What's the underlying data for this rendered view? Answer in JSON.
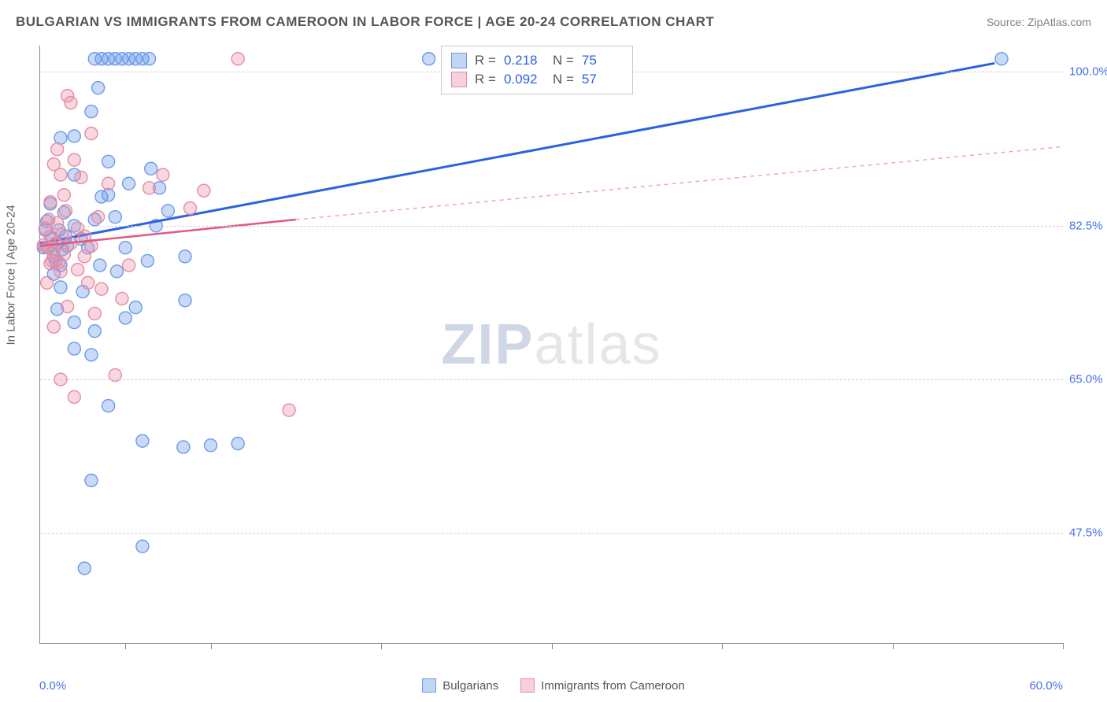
{
  "title": "BULGARIAN VS IMMIGRANTS FROM CAMEROON IN LABOR FORCE | AGE 20-24 CORRELATION CHART",
  "source_label": "Source: ZipAtlas.com",
  "ylabel": "In Labor Force | Age 20-24",
  "watermark": {
    "part1": "ZIP",
    "part2": "atlas"
  },
  "chart": {
    "type": "scatter",
    "background_color": "#ffffff",
    "grid_color": "#d0d0d0",
    "axis_color": "#888888",
    "tick_label_color": "#4472e8",
    "xlim": [
      0,
      60
    ],
    "ylim": [
      35,
      103
    ],
    "x_tick_positions": [
      5,
      10,
      20,
      30,
      40,
      50,
      60
    ],
    "y_ticks": [
      47.5,
      65.0,
      82.5,
      100.0
    ],
    "y_tick_labels": [
      "47.5%",
      "65.0%",
      "82.5%",
      "100.0%"
    ],
    "x_min_label": "0.0%",
    "x_max_label": "60.0%",
    "marker_radius": 8,
    "marker_stroke_width": 1.4,
    "series": [
      {
        "name": "Bulgarians",
        "color_fill": "rgba(100,150,235,0.35)",
        "color_stroke": "#6a9be8",
        "swatch_fill": "#c3d5f5",
        "swatch_border": "#6a9be8",
        "R": "0.218",
        "N": "75",
        "regression": {
          "x1": 0,
          "y1": 80.5,
          "x2": 56,
          "y2": 101,
          "stroke": "#2b62e0",
          "width": 3,
          "dash": ""
        },
        "regression_ext": null,
        "points": [
          [
            0.5,
            80
          ],
          [
            0.7,
            81
          ],
          [
            0.8,
            79
          ],
          [
            0.3,
            82
          ],
          [
            1.0,
            80.5
          ],
          [
            1.2,
            78
          ],
          [
            1.5,
            81.3
          ],
          [
            0.4,
            83
          ],
          [
            0.9,
            78.5
          ],
          [
            1.1,
            82
          ],
          [
            1.4,
            84
          ],
          [
            0.6,
            85
          ],
          [
            0.2,
            80
          ],
          [
            0.8,
            77
          ],
          [
            1.3,
            79.8
          ],
          [
            1.6,
            80.2
          ],
          [
            2.0,
            82.5
          ],
          [
            2.4,
            81
          ],
          [
            2.8,
            80
          ],
          [
            3.2,
            83.2
          ],
          [
            3.6,
            85.8
          ],
          [
            4.0,
            86
          ],
          [
            4.4,
            83.5
          ],
          [
            5.2,
            87.3
          ],
          [
            5.6,
            73.2
          ],
          [
            2.0,
            92.7
          ],
          [
            3.2,
            101.5
          ],
          [
            3.6,
            101.5
          ],
          [
            4.0,
            101.5
          ],
          [
            4.4,
            101.5
          ],
          [
            4.8,
            101.5
          ],
          [
            5.2,
            101.5
          ],
          [
            5.6,
            101.5
          ],
          [
            6.0,
            101.5
          ],
          [
            6.4,
            101.5
          ],
          [
            3.4,
            98.2
          ],
          [
            1.2,
            92.5
          ],
          [
            2.0,
            88.3
          ],
          [
            4.0,
            89.8
          ],
          [
            22.8,
            101.5
          ],
          [
            56.4,
            101.5
          ],
          [
            11.6,
            57.7
          ],
          [
            10.0,
            57.5
          ],
          [
            8.4,
            57.3
          ],
          [
            6.0,
            58.0
          ],
          [
            4.0,
            62.0
          ],
          [
            3.0,
            53.5
          ],
          [
            2.6,
            43.5
          ],
          [
            6.0,
            46.0
          ],
          [
            5.0,
            72.0
          ],
          [
            3.2,
            70.5
          ],
          [
            3.0,
            67.8
          ],
          [
            2.0,
            68.5
          ],
          [
            2.0,
            71.5
          ],
          [
            1.0,
            73.0
          ],
          [
            1.2,
            75.5
          ],
          [
            2.5,
            75.0
          ],
          [
            3.5,
            78.0
          ],
          [
            4.5,
            77.3
          ],
          [
            5.0,
            80.0
          ],
          [
            6.3,
            78.5
          ],
          [
            6.8,
            82.5
          ],
          [
            7.5,
            84.2
          ],
          [
            8.5,
            79.0
          ],
          [
            8.5,
            74.0
          ],
          [
            7.0,
            86.8
          ],
          [
            6.5,
            89.0
          ],
          [
            3.0,
            95.5
          ]
        ]
      },
      {
        "name": "Immigrants from Cameroon",
        "color_fill": "rgba(235,140,165,0.35)",
        "color_stroke": "#e88ba3",
        "swatch_fill": "#f6d0da",
        "swatch_border": "#e88ba3",
        "R": "0.092",
        "N": "57",
        "regression": {
          "x1": 0,
          "y1": 80.2,
          "x2": 15,
          "y2": 83.2,
          "stroke": "#e05a7e",
          "width": 2.5,
          "dash": ""
        },
        "regression_ext": {
          "x1": 15,
          "y1": 83.2,
          "x2": 60,
          "y2": 91.5,
          "stroke": "#e8a5b6",
          "width": 1.4,
          "dash": "5 5"
        },
        "points": [
          [
            0.4,
            80
          ],
          [
            0.6,
            81.3
          ],
          [
            0.8,
            79.8
          ],
          [
            0.3,
            82.2
          ],
          [
            0.9,
            80.5
          ],
          [
            1.1,
            78.3
          ],
          [
            1.3,
            81.5
          ],
          [
            0.5,
            83.2
          ],
          [
            0.7,
            78.5
          ],
          [
            1.0,
            82.8
          ],
          [
            1.5,
            84.2
          ],
          [
            0.6,
            85.2
          ],
          [
            0.2,
            80.3
          ],
          [
            1.2,
            77.3
          ],
          [
            1.4,
            79.2
          ],
          [
            1.8,
            80.5
          ],
          [
            2.2,
            82.2
          ],
          [
            2.6,
            81.3
          ],
          [
            3.0,
            80.2
          ],
          [
            3.4,
            83.5
          ],
          [
            1.6,
            97.3
          ],
          [
            1.8,
            96.5
          ],
          [
            1.2,
            88.3
          ],
          [
            2.4,
            88.0
          ],
          [
            4.0,
            87.3
          ],
          [
            6.4,
            86.8
          ],
          [
            7.2,
            88.3
          ],
          [
            8.8,
            84.5
          ],
          [
            9.6,
            86.5
          ],
          [
            11.6,
            101.5
          ],
          [
            14.6,
            61.5
          ],
          [
            4.4,
            65.5
          ],
          [
            2.0,
            63.0
          ],
          [
            1.2,
            65.0
          ],
          [
            0.8,
            71.0
          ],
          [
            1.6,
            73.3
          ],
          [
            3.2,
            72.5
          ],
          [
            4.8,
            74.2
          ],
          [
            2.8,
            76.0
          ],
          [
            3.6,
            75.3
          ],
          [
            5.2,
            78.0
          ],
          [
            0.4,
            76.0
          ],
          [
            0.6,
            78.2
          ],
          [
            1.4,
            86.0
          ],
          [
            2.0,
            90.0
          ],
          [
            0.8,
            89.5
          ],
          [
            3.0,
            93.0
          ],
          [
            2.2,
            77.5
          ],
          [
            2.6,
            79.0
          ],
          [
            1.0,
            91.2
          ]
        ]
      }
    ]
  },
  "legend_title_series1": "Bulgarians",
  "legend_title_series2": "Immigrants from Cameroon"
}
